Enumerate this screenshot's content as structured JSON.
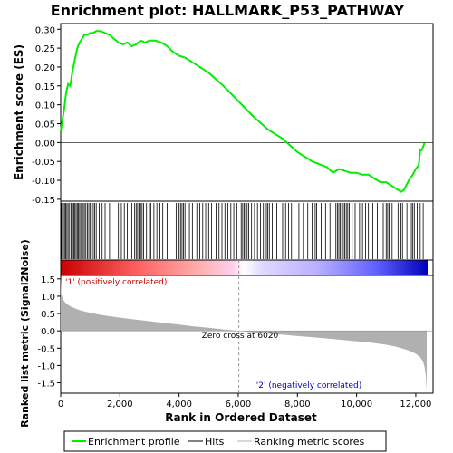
{
  "chart_data": {
    "type": "line",
    "title": "Enrichment plot: HALLMARK_P53_PATHWAY",
    "xlabel": "Rank in Ordered Dataset",
    "ylabel_top": "Enrichment score (ES)",
    "ylabel_bottom": "Ranked list metric (Signal2Noise)",
    "xlim": [
      0,
      12400
    ],
    "xticks": [
      0,
      2000,
      4000,
      6000,
      8000,
      10000,
      12000
    ],
    "xtick_labels": [
      "0",
      "2,000",
      "4,000",
      "6,000",
      "8,000",
      "10,000",
      "12,000"
    ],
    "es_ylim": [
      -0.155,
      0.315
    ],
    "es_yticks": [
      0.3,
      0.25,
      0.2,
      0.15,
      0.1,
      0.05,
      0.0,
      -0.05,
      -0.1,
      -0.15
    ],
    "es_ytick_labels": [
      "0.30",
      "0.25",
      "0.20",
      "0.15",
      "0.10",
      "0.05",
      "0.00",
      "-0.05",
      "-0.10",
      "-0.15"
    ],
    "metric_ylim": [
      -1.8,
      1.6
    ],
    "metric_yticks": [
      1.5,
      1.0,
      0.5,
      0.0,
      -0.5,
      -1.0,
      -1.5
    ],
    "metric_ytick_labels": [
      "1.5",
      "1.0",
      "0.5",
      "0.0",
      "-0.5",
      "-1.0",
      "-1.5"
    ],
    "series": [
      {
        "name": "Enrichment profile",
        "color": "#00ee00",
        "x": [
          0,
          60,
          120,
          180,
          250,
          320,
          400,
          480,
          560,
          640,
          720,
          800,
          900,
          1000,
          1100,
          1200,
          1350,
          1500,
          1650,
          1800,
          1950,
          2100,
          2250,
          2400,
          2550,
          2700,
          2850,
          3000,
          3200,
          3400,
          3600,
          3800,
          4000,
          4200,
          4500,
          5000,
          5500,
          6000,
          6500,
          7000,
          7500,
          8000,
          8500,
          9000,
          9200,
          9400,
          9600,
          9800,
          10000,
          10200,
          10400,
          10600,
          10800,
          11000,
          11200,
          11400,
          11500,
          11600,
          11700,
          11800,
          11900,
          12000,
          12100,
          12150,
          12200,
          12300
        ],
        "y": [
          0.03,
          0.06,
          0.09,
          0.13,
          0.155,
          0.15,
          0.19,
          0.22,
          0.25,
          0.265,
          0.275,
          0.285,
          0.285,
          0.29,
          0.29,
          0.295,
          0.295,
          0.29,
          0.285,
          0.275,
          0.265,
          0.26,
          0.265,
          0.255,
          0.26,
          0.27,
          0.265,
          0.27,
          0.27,
          0.265,
          0.255,
          0.24,
          0.23,
          0.225,
          0.21,
          0.185,
          0.15,
          0.11,
          0.07,
          0.035,
          0.01,
          -0.025,
          -0.05,
          -0.065,
          -0.08,
          -0.07,
          -0.075,
          -0.08,
          -0.08,
          -0.085,
          -0.085,
          -0.095,
          -0.105,
          -0.105,
          -0.115,
          -0.125,
          -0.13,
          -0.125,
          -0.11,
          -0.095,
          -0.085,
          -0.07,
          -0.06,
          -0.02,
          -0.02,
          0.0
        ]
      },
      {
        "name": "Hits",
        "color": "#000000",
        "x": [
          20,
          60,
          90,
          130,
          170,
          210,
          250,
          300,
          350,
          400,
          440,
          480,
          520,
          560,
          600,
          640,
          680,
          720,
          760,
          800,
          850,
          900,
          950,
          1000,
          1050,
          1100,
          1150,
          1200,
          1300,
          1400,
          1500,
          1650,
          1950,
          2050,
          2150,
          2250,
          2400,
          2500,
          2550,
          2600,
          2650,
          2700,
          2750,
          2800,
          2900,
          3000,
          3050,
          3150,
          3250,
          3350,
          3450,
          3600,
          3900,
          4000,
          4050,
          4100,
          4150,
          4200,
          4350,
          4450,
          4600,
          4700,
          4800,
          4900,
          5000,
          5100,
          5250,
          5350,
          5450,
          5550,
          5650,
          5750,
          5850,
          5950,
          6100,
          6150,
          6200,
          6250,
          6300,
          6350,
          6450,
          6550,
          6650,
          6750,
          6850,
          6950,
          7000,
          7050,
          7150,
          7300,
          7500,
          7550,
          7600,
          7700,
          7800,
          8050,
          8200,
          8350,
          8500,
          8600,
          8650,
          8800,
          8950,
          9100,
          9200,
          9300,
          9350,
          9400,
          9450,
          9500,
          9550,
          9600,
          9650,
          9700,
          9750,
          9850,
          9950,
          10100,
          10200,
          10300,
          10400,
          10550,
          10700,
          10900,
          11000,
          11050,
          11100,
          11200,
          11400,
          11500,
          11550,
          11700,
          11850,
          11900,
          11950,
          12050,
          12150,
          12250
        ]
      },
      {
        "name": "Ranking metric scores",
        "color": "#b0b0b0",
        "x": [
          0,
          20,
          60,
          120,
          200,
          300,
          450,
          600,
          800,
          1000,
          1300,
          1600,
          2000,
          2500,
          3000,
          3500,
          4000,
          4500,
          5000,
          5500,
          6000,
          6020,
          6500,
          7000,
          7500,
          8000,
          8500,
          9000,
          9500,
          10000,
          10500,
          11000,
          11300,
          11600,
          11800,
          12000,
          12150,
          12250,
          12300,
          12340,
          12370
        ],
        "y": [
          1.5,
          1.05,
          0.95,
          0.85,
          0.78,
          0.72,
          0.66,
          0.61,
          0.56,
          0.52,
          0.47,
          0.43,
          0.38,
          0.33,
          0.28,
          0.23,
          0.18,
          0.13,
          0.09,
          0.04,
          0.005,
          0.0,
          -0.04,
          -0.08,
          -0.11,
          -0.15,
          -0.18,
          -0.22,
          -0.26,
          -0.3,
          -0.34,
          -0.4,
          -0.45,
          -0.52,
          -0.58,
          -0.66,
          -0.76,
          -0.9,
          -1.05,
          -1.3,
          -1.75
        ]
      }
    ],
    "annotations": {
      "positive": "'1' (positively correlated)",
      "negative": "'2' (negatively correlated)",
      "zero_cross": "Zero cross at 6020",
      "zero_cross_x": 6020,
      "positive_color": "#cc0000",
      "negative_color": "#0000cc"
    },
    "legend": {
      "placement": "bottom",
      "items": [
        {
          "label": "Enrichment profile",
          "color": "#00ee00"
        },
        {
          "label": "Hits",
          "color": "#000000"
        },
        {
          "label": "Ranking metric scores",
          "color": "#b0b0b0"
        }
      ]
    },
    "grid": false
  }
}
